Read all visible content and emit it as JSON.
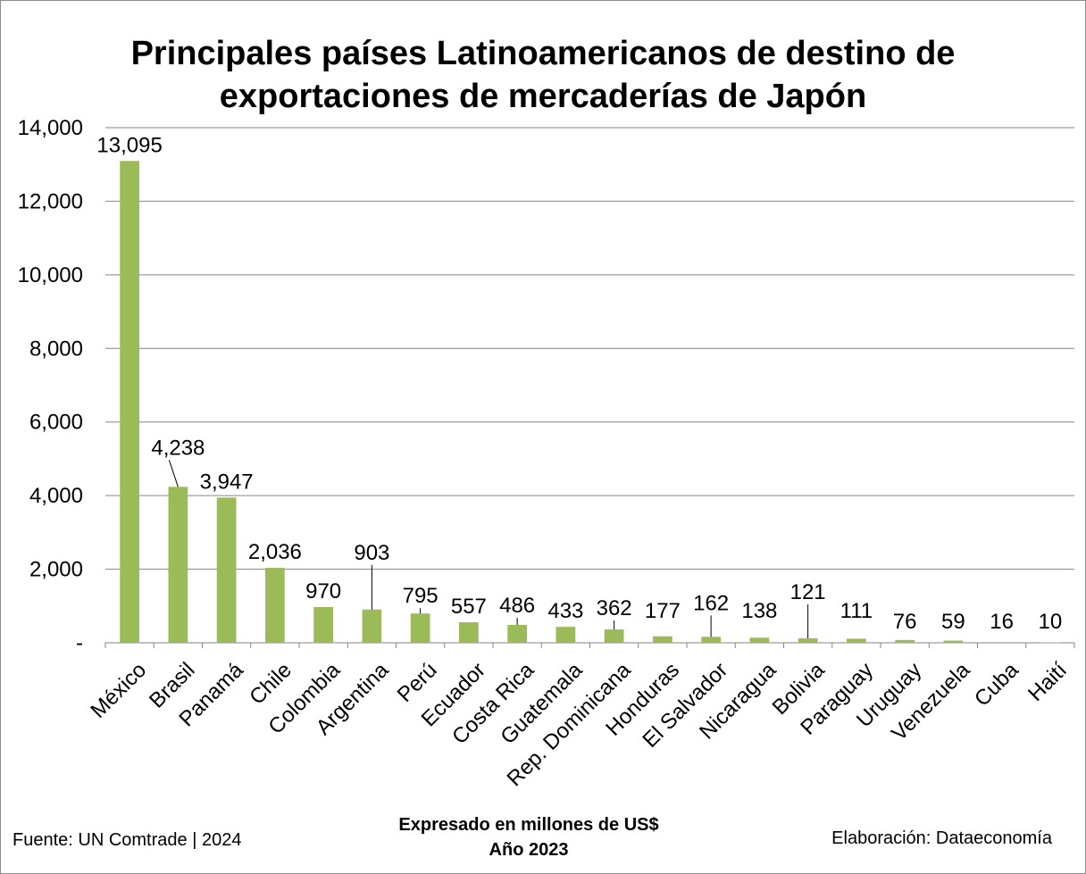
{
  "chart_data": {
    "type": "bar",
    "title_line1": "Principales países Latinoamericanos de destino de",
    "title_line2": "exportaciones de mercaderías de Japón",
    "categories": [
      "México",
      "Brasil",
      "Panamá",
      "Chile",
      "Colombia",
      "Argentina",
      "Perú",
      "Ecuador",
      "Costa Rica",
      "Guatemala",
      "Rep. Dominicana",
      "Honduras",
      "El Salvador",
      "Nicaragua",
      "Bolivia",
      "Paraguay",
      "Uruguay",
      "Venezuela",
      "Cuba",
      "Haití"
    ],
    "values": [
      13095,
      4238,
      3947,
      2036,
      970,
      903,
      795,
      557,
      486,
      433,
      362,
      177,
      162,
      138,
      121,
      111,
      76,
      59,
      16,
      10
    ],
    "value_labels": [
      "13,095",
      "4,238",
      "3,947",
      "2,036",
      "970",
      "903",
      "795",
      "557",
      "486",
      "433",
      "362",
      "177",
      "162",
      "138",
      "121",
      "111",
      "76",
      "59",
      "16",
      "10"
    ],
    "ylim": [
      0,
      14000
    ],
    "y_ticks": [
      0,
      2000,
      4000,
      6000,
      8000,
      10000,
      12000,
      14000
    ],
    "y_tick_labels": [
      "-",
      "2,000",
      "4,000",
      "6,000",
      "8,000",
      "10,000",
      "12,000",
      "14,000"
    ],
    "grid": true,
    "legend": "none",
    "bar_color": "#9bbb59",
    "gridline_color": "#868686"
  },
  "footer": {
    "source": "Fuente: UN Comtrade | 2024",
    "note_line1": "Expresado en millones de US$",
    "note_line2": "Año 2023",
    "credit": "Elaboración: Dataeconomía"
  }
}
